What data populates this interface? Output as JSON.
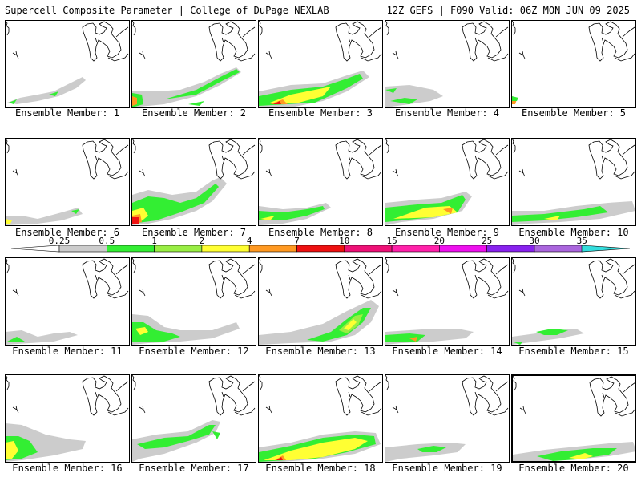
{
  "header": {
    "left": "Supercell Composite Parameter | College of DuPage NEXLAB",
    "right": "12Z GEFS | F090 Valid: 06Z MON JUN 09 2025"
  },
  "colorbar": {
    "ticks": [
      "0.25",
      "0.5",
      "1",
      "2",
      "4",
      "7",
      "10",
      "15",
      "20",
      "25",
      "30",
      "35"
    ],
    "colors": [
      "#cccccc",
      "#33ee33",
      "#99ee44",
      "#ffff33",
      "#ff9922",
      "#ee1111",
      "#ee1177",
      "#ff22aa",
      "#ee11ee",
      "#8822ee",
      "#aa66dd",
      "#33dddd"
    ]
  },
  "panels": [
    {
      "label": "Ensemble Member: 1"
    },
    {
      "label": "Ensemble Member: 2"
    },
    {
      "label": "Ensemble Member: 3"
    },
    {
      "label": "Ensemble Member: 4"
    },
    {
      "label": "Ensemble Member: 5"
    },
    {
      "label": "Ensemble Member: 6"
    },
    {
      "label": "Ensemble Member: 7"
    },
    {
      "label": "Ensemble Member: 8"
    },
    {
      "label": "Ensemble Member: 9"
    },
    {
      "label": "Ensemble Member: 10"
    },
    {
      "label": "Ensemble Member: 11"
    },
    {
      "label": "Ensemble Member: 12"
    },
    {
      "label": "Ensemble Member: 13"
    },
    {
      "label": "Ensemble Member: 14"
    },
    {
      "label": "Ensemble Member: 15"
    },
    {
      "label": "Ensemble Member: 16"
    },
    {
      "label": "Ensemble Member: 17"
    },
    {
      "label": "Ensemble Member: 18"
    },
    {
      "label": "Ensemble Member: 19"
    },
    {
      "label": "Ensemble Member: 20"
    }
  ]
}
